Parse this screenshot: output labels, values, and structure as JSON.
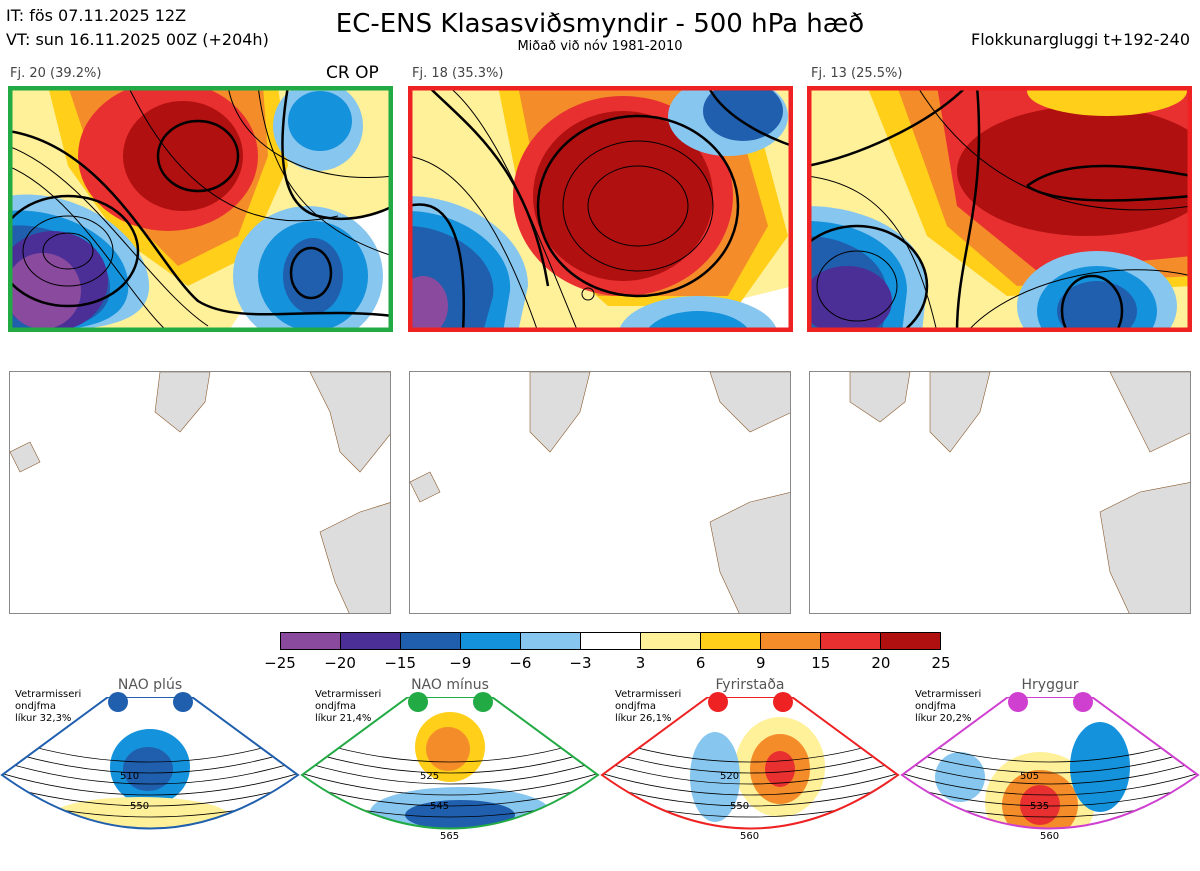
{
  "header": {
    "it": "IT: fös 07.11.2025 12Z",
    "vt": "VT: sun 16.11.2025 00Z  (+204h)",
    "title": "EC-ENS Klasasviðsmyndir - 500 hPa hæð",
    "subtitle": "Miðað við nóv 1981-2010",
    "window": "Flokkunargluggi t+192-240"
  },
  "clusters": [
    {
      "label": "Fj. 20 (39.2%)",
      "border": "#22aa44",
      "tag": "CR OP"
    },
    {
      "label": "Fj. 18 (35.3%)",
      "border": "#ee2222",
      "tag": ""
    },
    {
      "label": "Fj. 13 (25.5%)",
      "border": "#ee2222",
      "tag": ""
    }
  ],
  "colorbar": {
    "colors": [
      "#8a4a9e",
      "#4b2f96",
      "#1f5fae",
      "#1592dc",
      "#87c6ee",
      "#ffffff",
      "#fff09a",
      "#ffcf1a",
      "#f48c2a",
      "#e83030",
      "#b01010"
    ],
    "ticks": [
      "−25",
      "−20",
      "−15",
      "−9",
      "−6",
      "−3",
      "3",
      "6",
      "9",
      "15",
      "20",
      "25"
    ]
  },
  "regimes": [
    {
      "name": "NAO plús",
      "desc": "Vetrarmisseri\nondjfma\nlíkur 32,3%",
      "color": "#1f5fae",
      "labels": [
        "510",
        "550"
      ]
    },
    {
      "name": "NAO mínus",
      "desc": "Vetrarmisseri\nondjfma\nlíkur 21,4%",
      "color": "#22aa44",
      "labels": [
        "525",
        "545",
        "565"
      ]
    },
    {
      "name": "Fyrirstaða",
      "desc": "Vetrarmisseri\nondjfma\nlíkur 26,1%",
      "color": "#ee2222",
      "labels": [
        "520",
        "550",
        "560"
      ]
    },
    {
      "name": "Hryggur",
      "desc": "Vetrarmisseri\nondjfma\nlíkur 20,2%",
      "color": "#d040d0",
      "labels": [
        "505",
        "535",
        "560"
      ]
    }
  ]
}
